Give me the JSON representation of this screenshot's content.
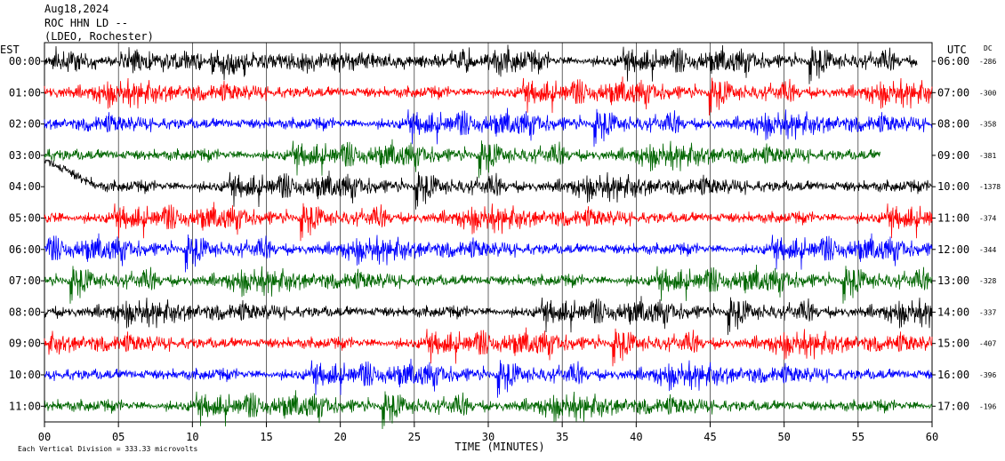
{
  "header": {
    "date": "Aug18,2024",
    "station": "ROC HHN LD --",
    "network": "(LDEO, Rochester)"
  },
  "labels": {
    "left_tz": "EST",
    "right_tz": "UTC",
    "dc_label": "DC",
    "xlabel": "TIME (MINUTES)",
    "footnote": "Each Vertical Division =  333.33 microvolts"
  },
  "colors": {
    "trace_cycle": [
      "#000000",
      "#ff0000",
      "#0000ff",
      "#006600"
    ],
    "grid": "#000000",
    "background": "#ffffff"
  },
  "chart_data": {
    "type": "line",
    "title": "",
    "xlabel": "TIME (MINUTES)",
    "xlim": [
      0,
      60
    ],
    "x_ticks": [
      "00",
      "05",
      "10",
      "15",
      "20",
      "25",
      "30",
      "35",
      "40",
      "45",
      "50",
      "55",
      "60"
    ],
    "grid": true,
    "series": [
      {
        "est": "00:00",
        "utc": "06:00",
        "dc": "-286",
        "end_minute": 59
      },
      {
        "est": "01:00",
        "utc": "07:00",
        "dc": "-300",
        "end_minute": 60
      },
      {
        "est": "02:00",
        "utc": "08:00",
        "dc": "-358",
        "end_minute": 60
      },
      {
        "est": "03:00",
        "utc": "09:00",
        "dc": "-381",
        "end_minute": 56.5
      },
      {
        "est": "04:00",
        "utc": "10:00",
        "dc": "-1378",
        "end_minute": 60
      },
      {
        "est": "05:00",
        "utc": "11:00",
        "dc": "-374",
        "end_minute": 60
      },
      {
        "est": "06:00",
        "utc": "12:00",
        "dc": "-344",
        "end_minute": 60
      },
      {
        "est": "07:00",
        "utc": "13:00",
        "dc": "-328",
        "end_minute": 60
      },
      {
        "est": "08:00",
        "utc": "14:00",
        "dc": "-337",
        "end_minute": 60
      },
      {
        "est": "09:00",
        "utc": "15:00",
        "dc": "-407",
        "end_minute": 60
      },
      {
        "est": "10:00",
        "utc": "16:00",
        "dc": "-396",
        "end_minute": 60
      },
      {
        "est": "11:00",
        "utc": "17:00",
        "dc": "-196",
        "end_minute": 60
      }
    ]
  }
}
